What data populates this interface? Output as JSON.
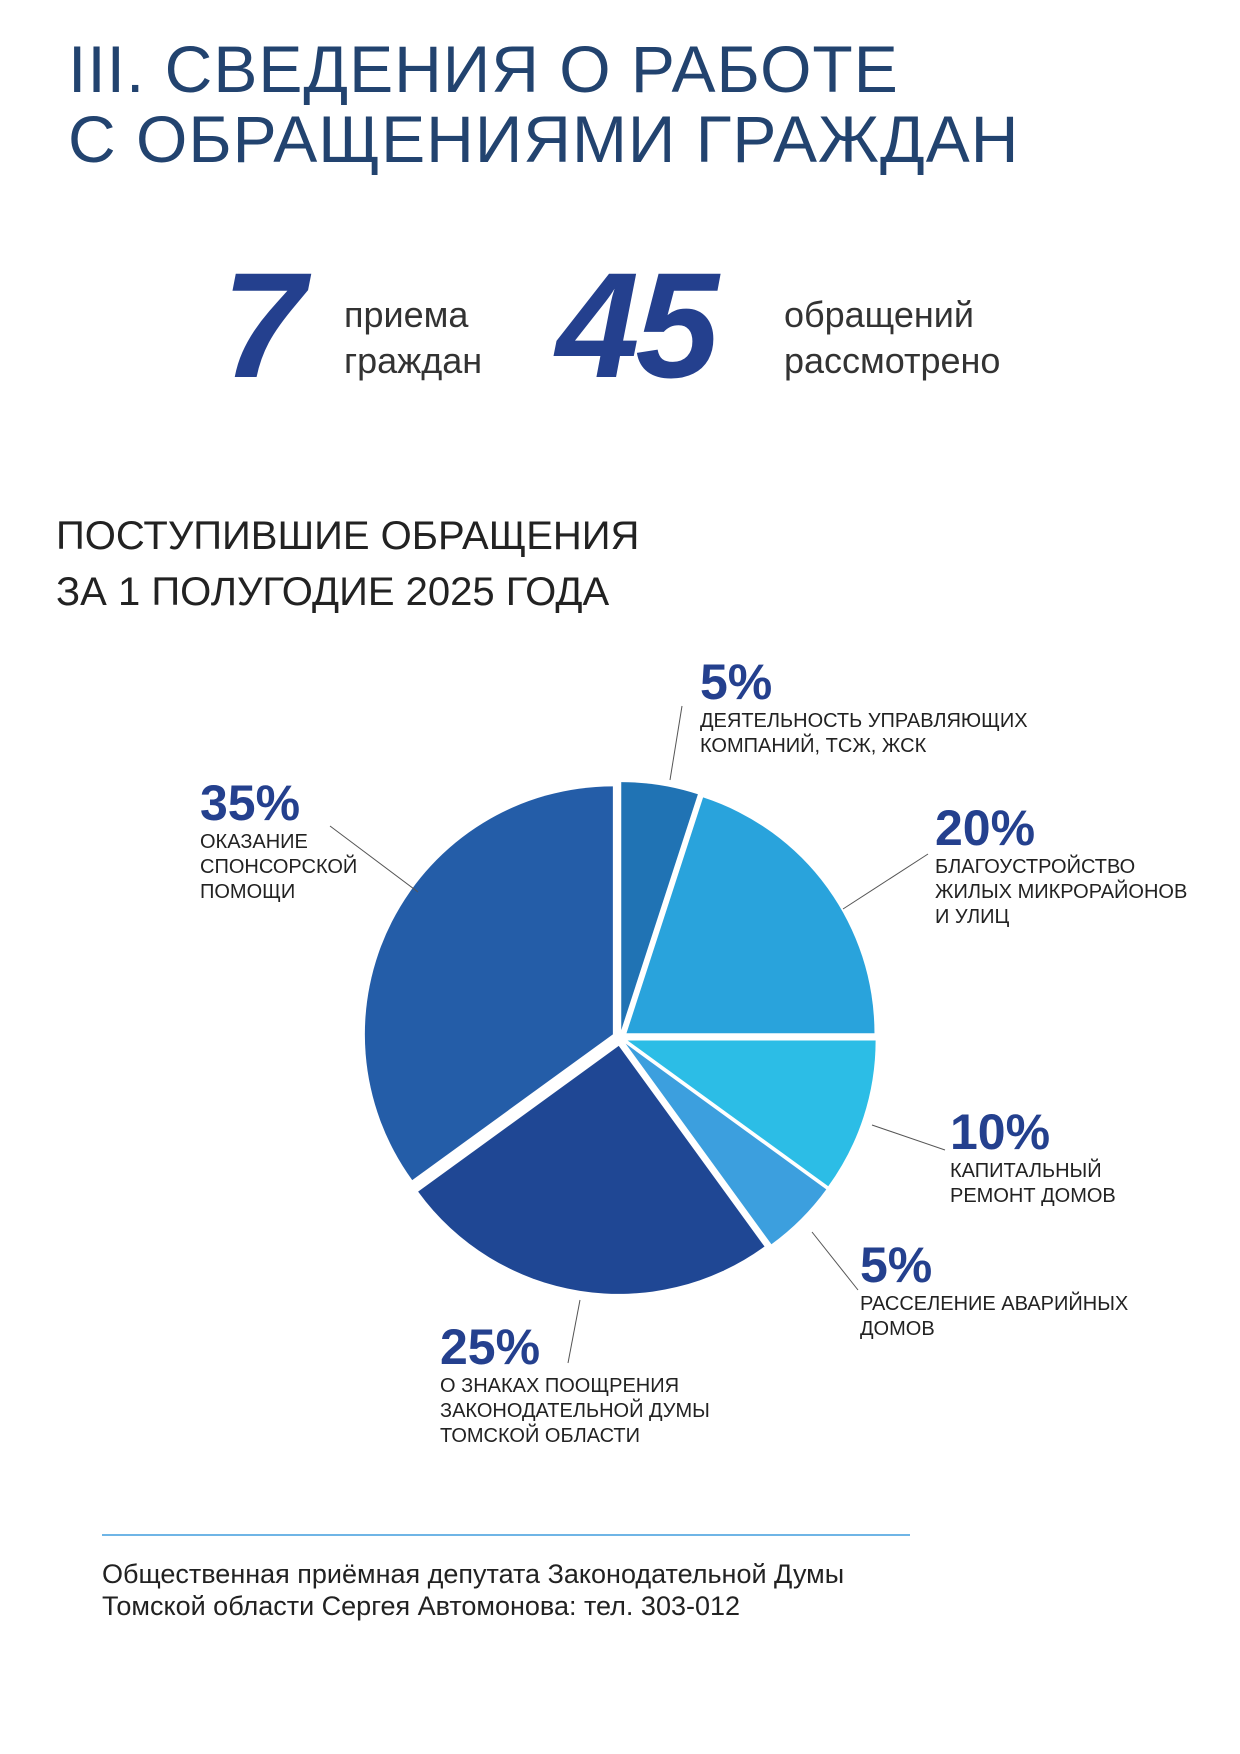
{
  "header": {
    "title_line1": "III. СВЕДЕНИЯ О РАБОТЕ",
    "title_line2": "С ОБРАЩЕНИЯМИ ГРАЖДАН"
  },
  "stats": [
    {
      "value": "7",
      "label_line1": "приема",
      "label_line2": "граждан"
    },
    {
      "value": "45",
      "label_line1": "обращений",
      "label_line2": "рассмотрено"
    }
  ],
  "section": {
    "title_line1": "ПОСТУПИВШИЕ ОБРАЩЕНИЯ",
    "title_line2": "ЗА 1 ПОЛУГОДИЕ 2025 ГОДА"
  },
  "chart_data": {
    "type": "pie",
    "title": "ПОСТУПИВШИЕ ОБРАЩЕНИЯ ЗА 1 ПОЛУГОДИЕ 2025 ГОДА",
    "slices": [
      {
        "pct_label": "5%",
        "value": 5,
        "color": "#2073b4",
        "label_lines": [
          "ДЕЯТЕЛЬНОСТЬ УПРАВЛЯЮЩИХ",
          "КОМПАНИЙ, ТСЖ, ЖСК"
        ]
      },
      {
        "pct_label": "20%",
        "value": 20,
        "color": "#29a3dc",
        "label_lines": [
          "БЛАГОУСТРОЙСТВО",
          "ЖИЛЫХ МИКРОРАЙОНОВ",
          "И УЛИЦ"
        ]
      },
      {
        "pct_label": "10%",
        "value": 10,
        "color": "#2cbde6",
        "label_lines": [
          "КАПИТАЛЬНЫЙ",
          "РЕМОНТ ДОМОВ"
        ]
      },
      {
        "pct_label": "5%",
        "value": 5,
        "color": "#3c9fde",
        "label_lines": [
          "РАССЕЛЕНИЕ АВАРИЙНЫХ",
          "ДОМОВ"
        ]
      },
      {
        "pct_label": "25%",
        "value": 25,
        "color": "#1f4794",
        "label_lines": [
          "О ЗНАКАХ ПООЩРЕНИЯ",
          "ЗАКОНОДАТЕЛЬНОЙ ДУМЫ",
          "ТОМСКОЙ ОБЛАСТИ"
        ]
      },
      {
        "pct_label": "35%",
        "value": 35,
        "color": "#245da8",
        "label_lines": [
          "ОКАЗАНИЕ",
          "СПОНСОРСКОЙ",
          "ПОМОЩИ"
        ]
      }
    ]
  },
  "footer": {
    "line1": "Общественная приёмная депутата Законодательной Думы",
    "line2": "Томской области Сергея Автомонова: тел. 303-012"
  }
}
